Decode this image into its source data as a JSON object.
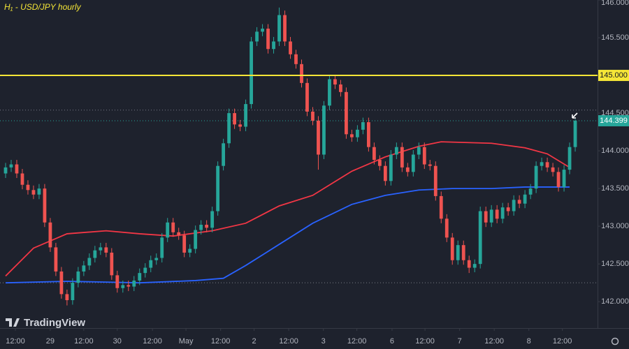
{
  "chart_data": {
    "type": "candlestick",
    "title": "H₁ - USD/JPY hourly",
    "brand": "TradingView",
    "xlim": [
      -1,
      106
    ],
    "xticks": [
      {
        "value": 1.75,
        "label": "12:00"
      },
      {
        "value": 8,
        "label": "29"
      },
      {
        "value": 14,
        "label": "12:00"
      },
      {
        "value": 20,
        "label": "30"
      },
      {
        "value": 26.3,
        "label": "12:00"
      },
      {
        "value": 32.3,
        "label": "May"
      },
      {
        "value": 38.5,
        "label": "12:00"
      },
      {
        "value": 44.5,
        "label": "2"
      },
      {
        "value": 50.7,
        "label": "12:00"
      },
      {
        "value": 56.9,
        "label": "3"
      },
      {
        "value": 62.9,
        "label": "12:00"
      },
      {
        "value": 69.2,
        "label": "6"
      },
      {
        "value": 75.1,
        "label": "12:00"
      },
      {
        "value": 81.3,
        "label": "7"
      },
      {
        "value": 87.5,
        "label": "12:00"
      },
      {
        "value": 93.7,
        "label": "8"
      },
      {
        "value": 99.7,
        "label": "12:00"
      }
    ],
    "ylim": [
      141.65,
      146.0
    ],
    "yticks": [
      {
        "value": 146,
        "label": "146.000"
      },
      {
        "value": 145.5,
        "label": "145.500"
      },
      {
        "value": 144.5,
        "label": "144.500"
      },
      {
        "value": 144,
        "label": "144.000"
      },
      {
        "value": 143.5,
        "label": "143.500"
      },
      {
        "value": 143,
        "label": "143.000"
      },
      {
        "value": 142.5,
        "label": "142.500"
      },
      {
        "value": 142,
        "label": "142.000"
      }
    ],
    "up_color": "#26a69a",
    "down_color": "#ef5350",
    "open": [
      143.7,
      143.78,
      143.82,
      143.7,
      143.55,
      143.48,
      143.42,
      143.5,
      143.05,
      142.72,
      142.4,
      142.1,
      142.02,
      142.25,
      142.4,
      142.48,
      142.58,
      142.68,
      142.72,
      142.65,
      142.35,
      142.18,
      142.22,
      142.2,
      142.28,
      142.38,
      142.45,
      142.55,
      142.58,
      142.85,
      143.05,
      142.92,
      142.88,
      142.65,
      142.7,
      142.95,
      143.02,
      142.98,
      143.2,
      143.8,
      144.1,
      144.5,
      144.35,
      144.32,
      144.62,
      145.45,
      145.58,
      145.62,
      145.35,
      145.45,
      145.8,
      145.45,
      145.28,
      145.15,
      144.9,
      144.52,
      144.4,
      143.95,
      144.6,
      144.95,
      144.88,
      144.78,
      144.22,
      144.18,
      144.28,
      144.38,
      144.05,
      143.88,
      143.8,
      143.6,
      143.95,
      144.05,
      143.78,
      143.72,
      143.95,
      144.05,
      143.82,
      143.8,
      143.4,
      143.1,
      142.85,
      142.55,
      142.75,
      142.55,
      142.45,
      142.5,
      143.2,
      143.05,
      143.22,
      143.1,
      143.25,
      143.2,
      143.35,
      143.3,
      143.42,
      143.5,
      143.8,
      143.85,
      143.78,
      143.72,
      143.52,
      143.75,
      144.05
    ],
    "high": [
      143.84,
      143.88,
      143.88,
      143.76,
      143.61,
      143.54,
      143.56,
      143.56,
      143.11,
      142.78,
      142.46,
      142.16,
      142.31,
      142.46,
      142.54,
      142.64,
      142.74,
      142.78,
      142.78,
      142.71,
      142.41,
      142.28,
      142.28,
      142.34,
      142.44,
      142.51,
      142.61,
      142.64,
      142.91,
      143.11,
      143.11,
      142.98,
      142.94,
      142.76,
      143.01,
      143.08,
      143.08,
      143.26,
      143.86,
      144.16,
      144.56,
      144.56,
      144.41,
      144.68,
      145.51,
      145.64,
      145.68,
      145.68,
      145.51,
      145.9,
      145.86,
      145.51,
      145.34,
      145.21,
      144.96,
      144.58,
      144.46,
      144.66,
      145.01,
      145.01,
      144.94,
      144.84,
      144.28,
      144.34,
      144.44,
      144.44,
      144.11,
      143.94,
      143.86,
      144.01,
      144.11,
      144.11,
      143.84,
      144.01,
      144.11,
      144.11,
      143.88,
      143.86,
      143.46,
      143.16,
      142.91,
      142.81,
      142.81,
      142.61,
      142.56,
      143.26,
      143.26,
      143.28,
      143.28,
      143.31,
      143.31,
      143.41,
      143.41,
      143.48,
      143.56,
      143.86,
      143.91,
      143.91,
      143.84,
      143.78,
      143.81,
      144.11,
      144.42
    ],
    "low": [
      143.64,
      143.72,
      143.64,
      143.49,
      143.42,
      143.36,
      143.36,
      142.99,
      142.66,
      142.34,
      142.04,
      141.95,
      141.96,
      142.19,
      142.34,
      142.42,
      142.52,
      142.62,
      142.59,
      142.29,
      142.12,
      142.12,
      142.14,
      142.14,
      142.22,
      142.32,
      142.39,
      142.49,
      142.52,
      142.79,
      142.86,
      142.82,
      142.59,
      142.59,
      142.64,
      142.89,
      142.92,
      142.92,
      143.14,
      143.74,
      144.04,
      144.29,
      144.26,
      144.26,
      144.56,
      145.39,
      145.52,
      145.29,
      145.29,
      145.39,
      145.39,
      145.22,
      145.09,
      144.84,
      144.46,
      144.34,
      143.75,
      143.89,
      144.54,
      144.82,
      144.72,
      144.16,
      144.12,
      144.12,
      144.22,
      143.99,
      143.82,
      143.74,
      143.54,
      143.54,
      143.89,
      143.72,
      143.66,
      143.66,
      143.89,
      143.76,
      143.74,
      143.34,
      143.04,
      142.79,
      142.49,
      142.49,
      142.49,
      142.38,
      142.39,
      142.44,
      142.99,
      142.99,
      143.04,
      143.04,
      143.14,
      143.14,
      143.24,
      143.24,
      143.36,
      143.44,
      143.74,
      143.72,
      143.66,
      143.46,
      143.46,
      143.69,
      143.99
    ],
    "close": [
      143.78,
      143.82,
      143.7,
      143.55,
      143.48,
      143.42,
      143.5,
      143.05,
      142.72,
      142.4,
      142.1,
      142.02,
      142.25,
      142.4,
      142.48,
      142.58,
      142.68,
      142.72,
      142.65,
      142.35,
      142.18,
      142.22,
      142.2,
      142.28,
      142.38,
      142.45,
      142.55,
      142.58,
      142.85,
      143.05,
      142.92,
      142.88,
      142.65,
      142.7,
      142.95,
      143.02,
      142.98,
      143.2,
      143.8,
      144.1,
      144.5,
      144.35,
      144.32,
      144.62,
      145.45,
      145.58,
      145.62,
      145.35,
      145.45,
      145.8,
      145.45,
      145.28,
      145.15,
      144.9,
      144.52,
      144.4,
      143.95,
      144.6,
      144.95,
      144.88,
      144.78,
      144.22,
      144.18,
      144.28,
      144.38,
      144.05,
      143.88,
      143.8,
      143.6,
      143.95,
      144.05,
      143.78,
      143.72,
      143.95,
      144.05,
      143.82,
      143.8,
      143.4,
      143.1,
      142.85,
      142.55,
      142.75,
      142.55,
      142.45,
      142.5,
      143.2,
      143.05,
      143.22,
      143.1,
      143.25,
      143.2,
      143.35,
      143.3,
      143.42,
      143.5,
      143.8,
      143.85,
      143.78,
      143.72,
      143.52,
      143.75,
      144.05,
      144.399
    ],
    "lines": [
      {
        "color": "#f23645",
        "x": [
          0,
          5,
          11,
          18,
          24,
          30,
          37,
          43,
          49,
          55,
          62,
          68,
          74,
          78,
          87,
          93,
          97,
          101
        ],
        "values": [
          142.34,
          142.71,
          142.9,
          142.94,
          142.9,
          142.87,
          142.94,
          143.04,
          143.27,
          143.41,
          143.73,
          143.92,
          144.06,
          144.12,
          144.1,
          144.04,
          143.96,
          143.78
        ]
      },
      {
        "color": "#2962ff",
        "x": [
          0,
          11,
          24,
          34,
          39,
          43,
          49,
          55,
          62,
          68,
          74,
          80,
          87,
          93,
          101
        ],
        "values": [
          142.25,
          142.27,
          142.25,
          142.28,
          142.31,
          142.48,
          142.76,
          143.04,
          143.29,
          143.41,
          143.48,
          143.5,
          143.5,
          143.52,
          143.52
        ]
      }
    ],
    "hline": {
      "value": 145,
      "label": "145.000",
      "color": "#f5e637"
    },
    "last_price": {
      "value": 144.399,
      "label": "144.399",
      "color": "#26a69a"
    },
    "dotted_levels": [
      144.54,
      142.25
    ]
  }
}
